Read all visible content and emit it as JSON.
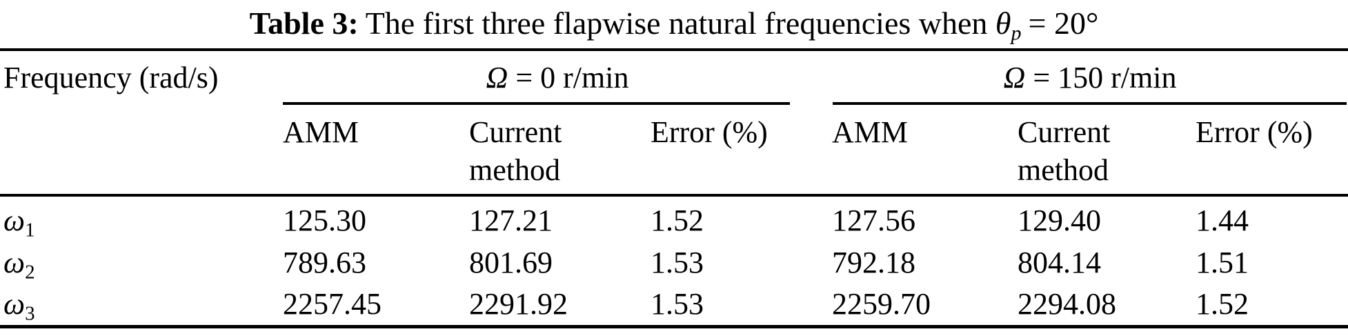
{
  "caption": {
    "label": "Table 3:",
    "text": "The first three flapwise natural frequencies when",
    "symbol": "θ",
    "symbol_sub": "p",
    "value": "= 20°"
  },
  "table": {
    "corner_header": "Frequency (rad/s)",
    "groups": [
      {
        "symbol": "Ω",
        "value": "= 0 r/min"
      },
      {
        "symbol": "Ω",
        "value": "= 150 r/min"
      }
    ],
    "sub_headers": [
      "AMM",
      "Current method",
      "Error (%)",
      "AMM",
      "Current method",
      "Error (%)"
    ],
    "rows": [
      {
        "symbol": "ω",
        "sub": "1",
        "values": [
          "125.30",
          "127.21",
          "1.52",
          "127.56",
          "129.40",
          "1.44"
        ]
      },
      {
        "symbol": "ω",
        "sub": "2",
        "values": [
          "789.63",
          "801.69",
          "1.53",
          "792.18",
          "804.14",
          "1.51"
        ]
      },
      {
        "symbol": "ω",
        "sub": "3",
        "values": [
          "2257.45",
          "2291.92",
          "1.53",
          "2259.70",
          "2294.08",
          "1.52"
        ]
      }
    ]
  },
  "colors": {
    "text": "#000000",
    "rule": "#000000",
    "background": "#ffffff"
  }
}
